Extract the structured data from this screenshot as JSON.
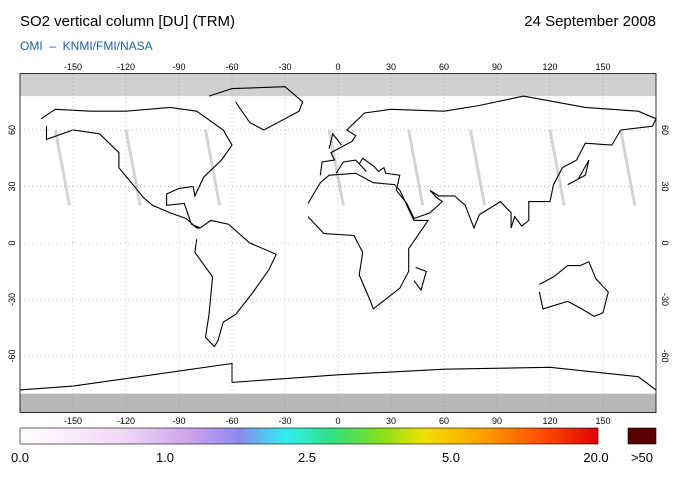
{
  "header": {
    "title": "SO2 vertical column [DU] (TRM)",
    "date": "24 September 2008",
    "source": "OMI  –  KNMI/FMI/NASA"
  },
  "map": {
    "lon_ticks": [
      -150,
      -120,
      -90,
      -60,
      -30,
      0,
      30,
      60,
      90,
      120,
      150
    ],
    "lat_ticks": [
      60,
      30,
      0,
      -30,
      -60
    ]
  },
  "legend": {
    "labels": [
      "0.0",
      "1.0",
      "2.5",
      "5.0",
      "20.0",
      ">50"
    ]
  }
}
